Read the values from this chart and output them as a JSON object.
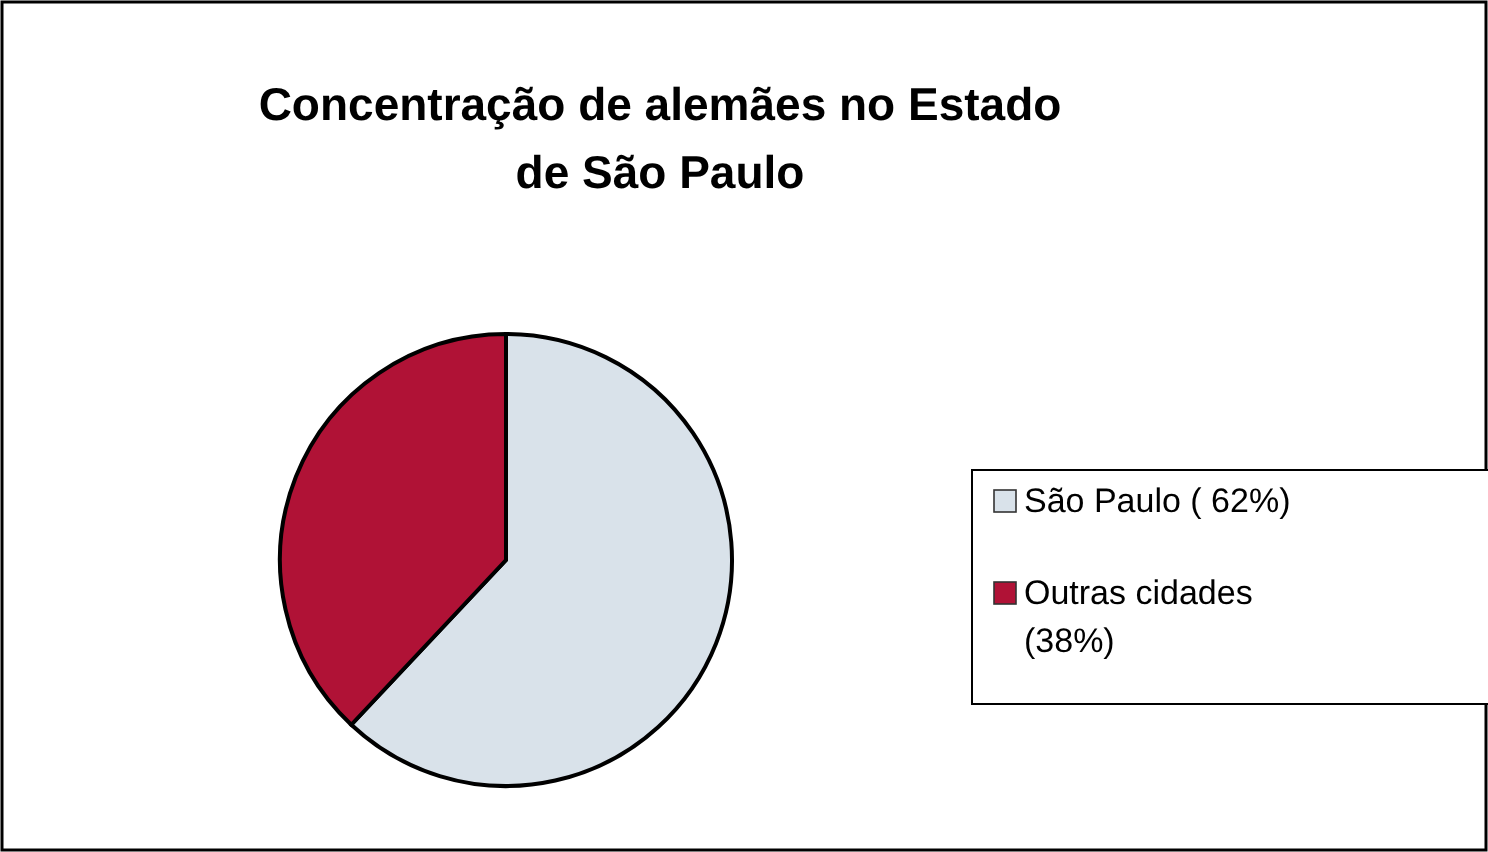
{
  "chart_data": {
    "type": "pie",
    "title": "Concentração de alemães no Estado de São Paulo",
    "categories": [
      "São Paulo ( 62%)",
      "Outras cidades (38%)"
    ],
    "values": [
      62,
      38
    ],
    "colors": [
      "#d9e2ea",
      "#b01236"
    ],
    "legend": "right"
  }
}
